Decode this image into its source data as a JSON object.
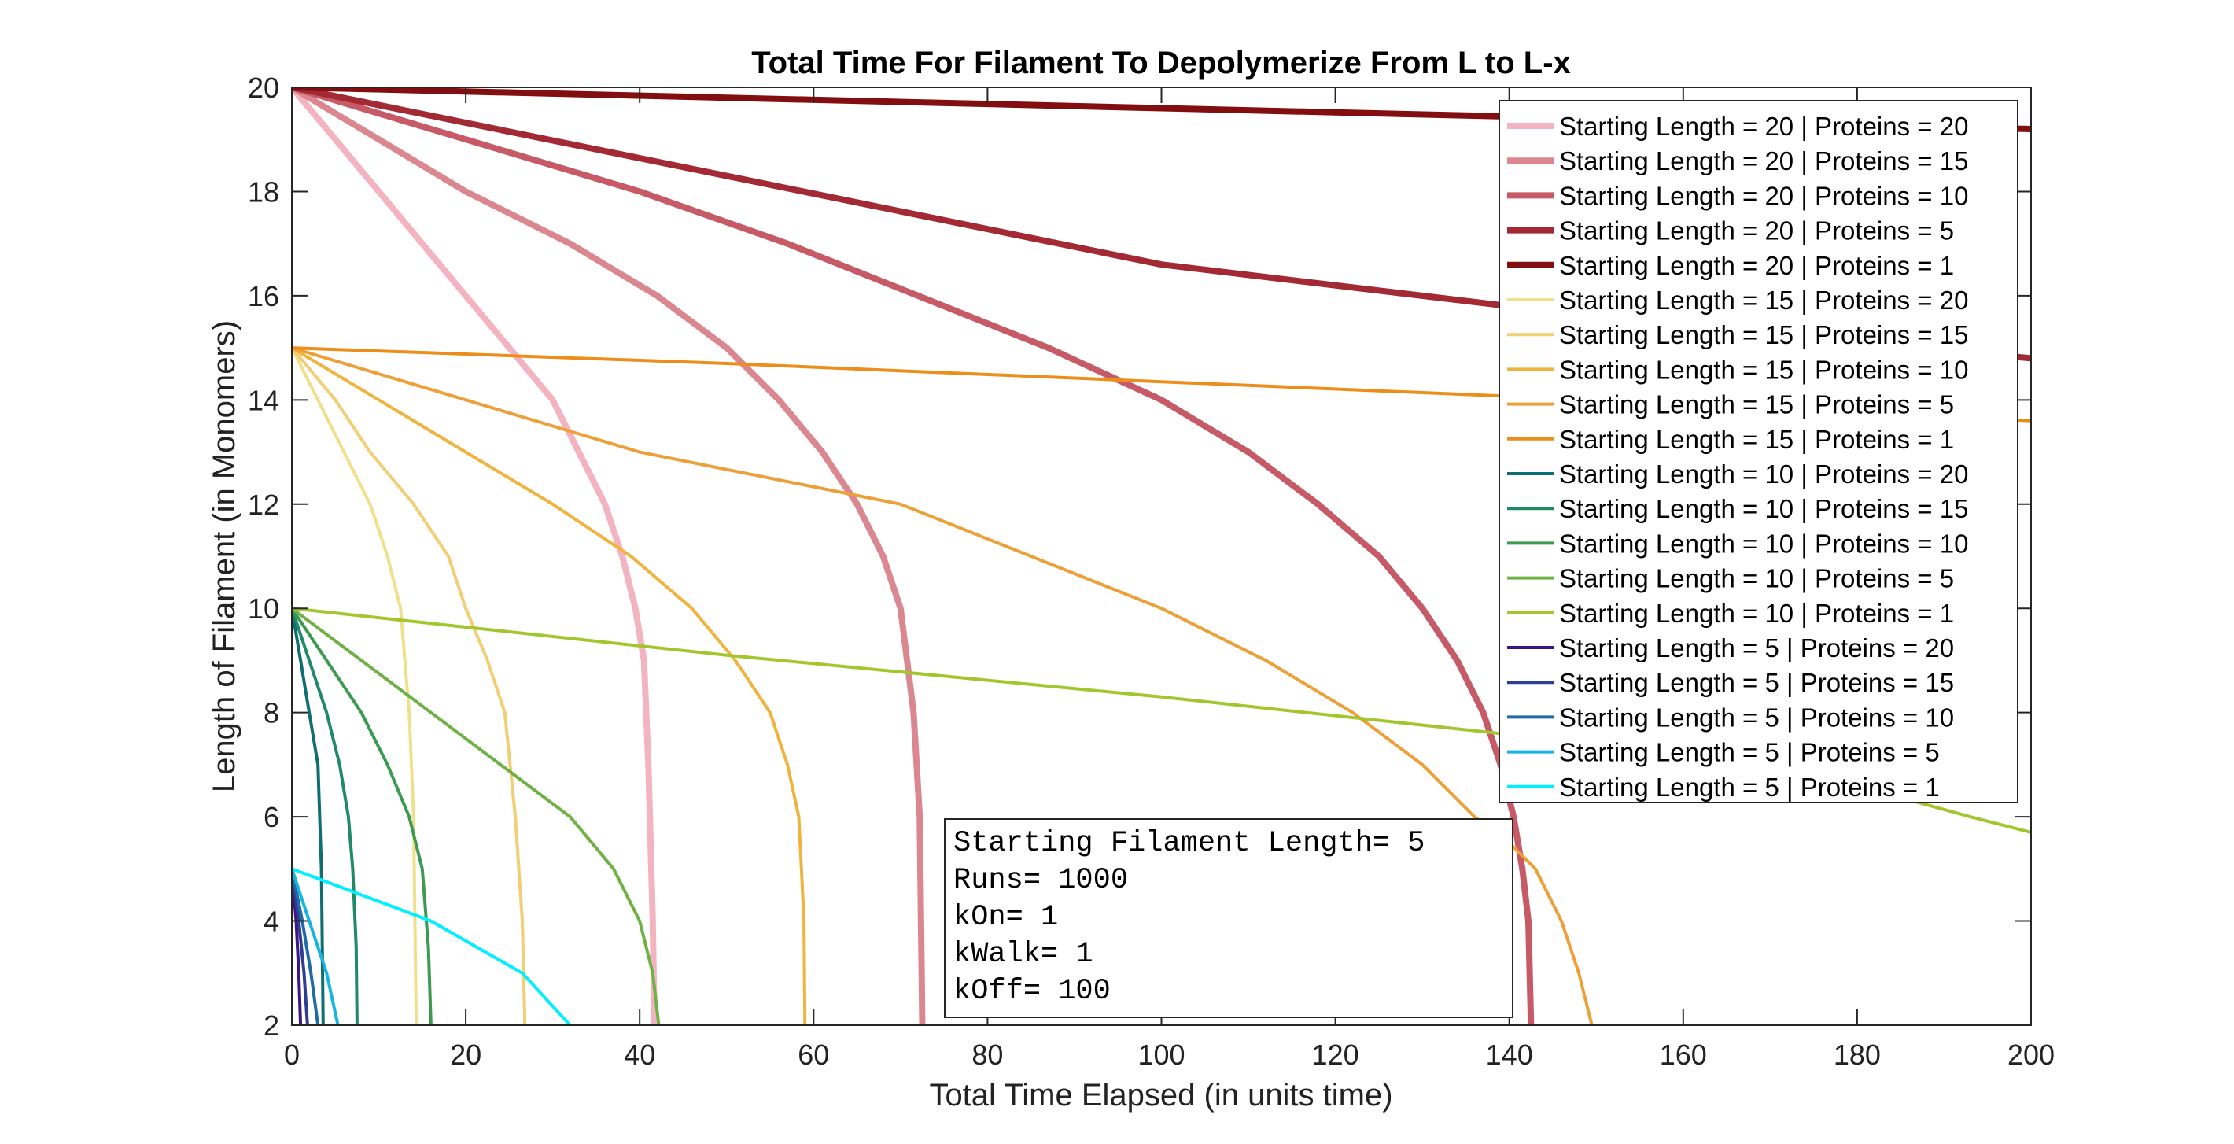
{
  "chart_data": {
    "type": "line",
    "title": "Total Time For Filament To Depolymerize From L to L-x",
    "xlabel": "Total Time Elapsed (in units time)",
    "ylabel": "Length of Filament (in Monomers)",
    "xlim": [
      0,
      200
    ],
    "ylim": [
      2,
      20
    ],
    "xticks": [
      0,
      20,
      40,
      60,
      80,
      100,
      120,
      140,
      160,
      180,
      200
    ],
    "yticks": [
      2,
      4,
      6,
      8,
      10,
      12,
      14,
      16,
      18,
      20
    ],
    "grid": false,
    "legend_position": "top-right",
    "series": [
      {
        "name": "Starting Length = 20 | Proteins = 20",
        "color": "#f4b3c0",
        "bold": true,
        "x": [
          0,
          5,
          10,
          15,
          20,
          25,
          30,
          33,
          36,
          38,
          39.5,
          40.5,
          41,
          41.5,
          41.7
        ],
        "y": [
          20,
          19,
          18,
          17,
          16,
          15,
          14,
          13,
          12,
          11,
          10,
          9,
          7,
          4,
          2
        ]
      },
      {
        "name": "Starting Length = 20 | Proteins = 15",
        "color": "#db8790",
        "bold": true,
        "x": [
          0,
          10,
          20,
          32,
          42,
          50,
          56,
          61,
          65,
          68,
          70,
          71.5,
          72.2,
          72.5
        ],
        "y": [
          20,
          19,
          18,
          17,
          16,
          15,
          14,
          13,
          12,
          11,
          10,
          8,
          6,
          2
        ]
      },
      {
        "name": "Starting Length = 20 | Proteins = 10",
        "color": "#c65a66",
        "bold": true,
        "x": [
          0,
          20,
          40,
          57,
          72,
          87,
          100,
          110,
          118,
          125,
          130,
          134,
          137,
          139,
          140.5,
          141.5,
          142.2,
          142.5
        ],
        "y": [
          20,
          19,
          18,
          17,
          16,
          15,
          14,
          13,
          12,
          11,
          10,
          9,
          8,
          7,
          6,
          5,
          4,
          2
        ]
      },
      {
        "name": "Starting Length = 20 | Proteins = 5",
        "color": "#a32935",
        "bold": true,
        "x": [
          0,
          50,
          100,
          150,
          200
        ],
        "y": [
          20,
          18.3,
          16.6,
          15.6,
          14.8
        ]
      },
      {
        "name": "Starting Length = 20 | Proteins = 1",
        "color": "#820e0f",
        "bold": true,
        "x": [
          0,
          50,
          100,
          150,
          200
        ],
        "y": [
          20,
          19.8,
          19.6,
          19.4,
          19.2
        ]
      },
      {
        "name": "Starting Length = 15 | Proteins = 20",
        "color": "#f0e08c",
        "bold": false,
        "x": [
          0,
          3,
          6,
          9,
          11,
          12.5,
          13.5,
          14,
          14.3
        ],
        "y": [
          15,
          14,
          13,
          12,
          11,
          10,
          8,
          6,
          2
        ]
      },
      {
        "name": "Starting Length = 15 | Proteins = 15",
        "color": "#f2ce74",
        "bold": false,
        "x": [
          0,
          5,
          9,
          14,
          18,
          20,
          22.5,
          24.5,
          25.7,
          26.5,
          26.8
        ],
        "y": [
          15,
          14,
          13,
          12,
          11,
          10,
          9,
          8,
          6,
          4,
          2
        ]
      },
      {
        "name": "Starting Length = 15 | Proteins = 10",
        "color": "#f0b43e",
        "bold": false,
        "x": [
          0,
          10,
          20,
          30,
          39,
          46,
          51,
          55,
          57,
          58.3,
          58.9,
          59
        ],
        "y": [
          15,
          14,
          13,
          12,
          11,
          10,
          9,
          8,
          7,
          6,
          4,
          2
        ]
      },
      {
        "name": "Starting Length = 15 | Proteins = 5",
        "color": "#eea038",
        "bold": false,
        "x": [
          0,
          20,
          40,
          55,
          70,
          85,
          100,
          112,
          122,
          130,
          136,
          140,
          143,
          146,
          148,
          149.5
        ],
        "y": [
          15,
          14,
          13,
          12.5,
          12,
          11,
          10,
          9,
          8,
          7,
          6,
          5.5,
          5,
          4,
          3,
          2
        ]
      },
      {
        "name": "Starting Length = 15 | Proteins = 1",
        "color": "#ec8e1c",
        "bold": false,
        "x": [
          0,
          50,
          100,
          150,
          200
        ],
        "y": [
          15,
          14.7,
          14.35,
          14.0,
          13.6
        ]
      },
      {
        "name": "Starting Length = 10 | Proteins = 20",
        "color": "#0f6e72",
        "bold": false,
        "x": [
          0,
          1,
          2,
          3,
          3.4,
          3.6
        ],
        "y": [
          10,
          9,
          8,
          7,
          5,
          2
        ]
      },
      {
        "name": "Starting Length = 10 | Proteins = 15",
        "color": "#1f8a68",
        "bold": false,
        "x": [
          0,
          2,
          4,
          5.5,
          6.5,
          7,
          7.4,
          7.5
        ],
        "y": [
          10,
          9,
          8,
          7,
          6,
          5,
          3.5,
          2
        ]
      },
      {
        "name": "Starting Length = 10 | Proteins = 10",
        "color": "#3d9a50",
        "bold": false,
        "x": [
          0,
          4,
          8,
          11,
          13.5,
          15,
          15.7,
          16
        ],
        "y": [
          10,
          9,
          8,
          7,
          6,
          5,
          3.5,
          2
        ]
      },
      {
        "name": "Starting Length = 10 | Proteins = 5",
        "color": "#6eb145",
        "bold": false,
        "x": [
          0,
          8,
          16,
          24,
          32,
          37,
          40,
          41.5,
          42.2
        ],
        "y": [
          10,
          9,
          8,
          7,
          6,
          5,
          4,
          3,
          2
        ]
      },
      {
        "name": "Starting Length = 10 | Proteins = 1",
        "color": "#a2c72e",
        "bold": false,
        "x": [
          0,
          50,
          100,
          150,
          180,
          193,
          200
        ],
        "y": [
          10,
          9.1,
          8.3,
          7.4,
          6.6,
          6.0,
          5.7
        ]
      },
      {
        "name": "Starting Length = 5 | Proteins = 20",
        "color": "#3c1682",
        "bold": false,
        "x": [
          0,
          0.5,
          0.8,
          1.0
        ],
        "y": [
          5,
          4,
          3,
          2
        ]
      },
      {
        "name": "Starting Length = 5 | Proteins = 15",
        "color": "#2e3e92",
        "bold": false,
        "x": [
          0,
          0.8,
          1.4,
          1.8
        ],
        "y": [
          5,
          4,
          3,
          2
        ]
      },
      {
        "name": "Starting Length = 5 | Proteins = 10",
        "color": "#1e6ba6",
        "bold": false,
        "x": [
          0,
          1.2,
          2.2,
          3.0
        ],
        "y": [
          5,
          4,
          3,
          2
        ]
      },
      {
        "name": "Starting Length = 5 | Proteins = 5",
        "color": "#17b4e0",
        "bold": false,
        "x": [
          0,
          2,
          4,
          5.3
        ],
        "y": [
          5,
          4,
          3,
          2
        ]
      },
      {
        "name": "Starting Length = 5 | Proteins = 1",
        "color": "#00f0ff",
        "bold": false,
        "x": [
          0,
          8,
          16,
          26.5,
          32
        ],
        "y": [
          5,
          4.5,
          4.0,
          3.0,
          2
        ]
      }
    ],
    "annotation": {
      "lines": [
        "Starting Filament Length=  5",
        "Runs= 1000",
        "kOn= 1",
        "kWalk= 1",
        "kOff= 100"
      ]
    }
  }
}
